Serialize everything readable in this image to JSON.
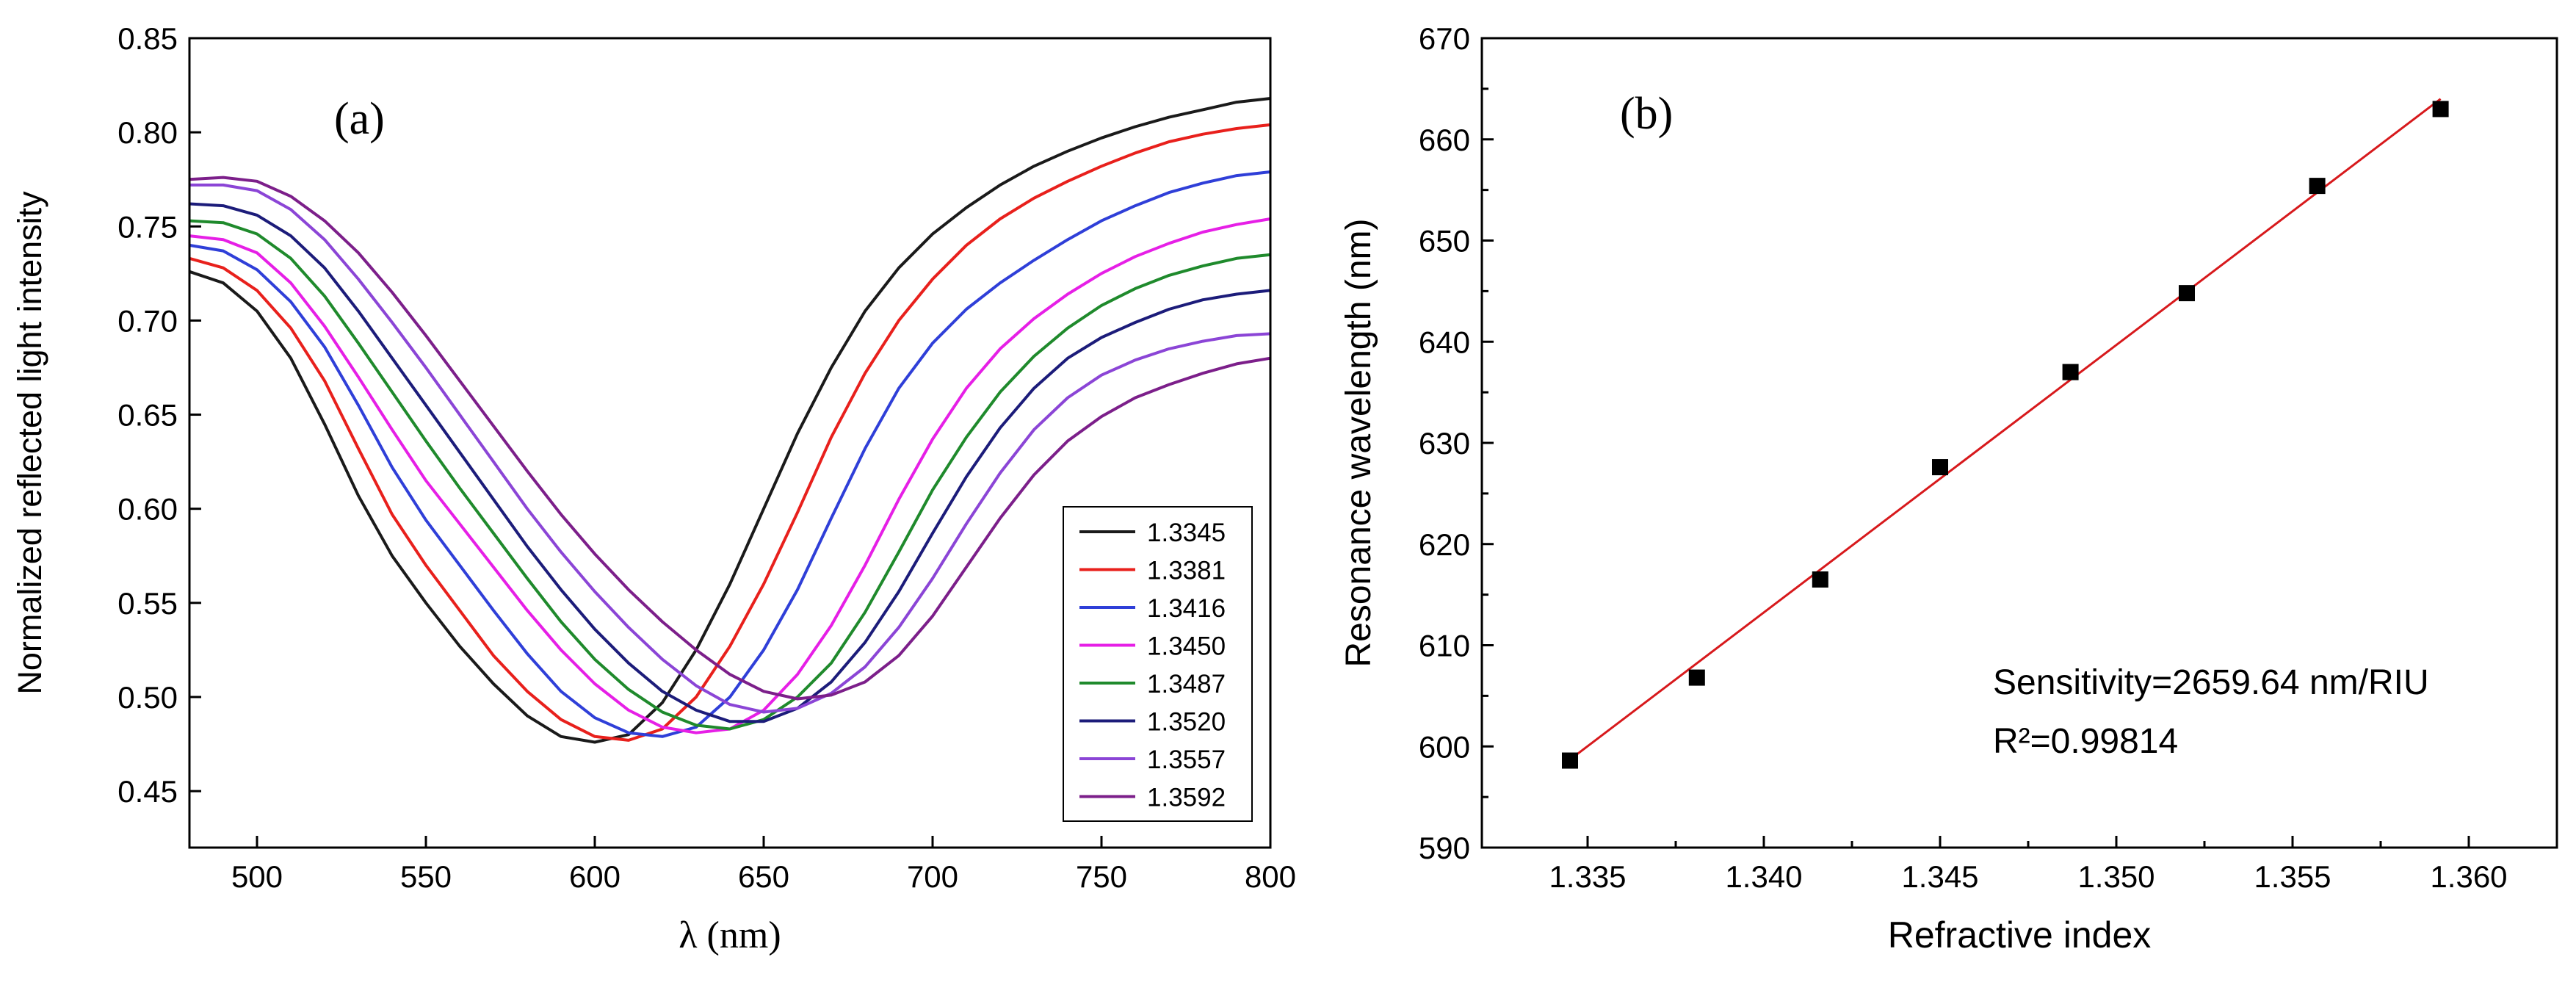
{
  "chart_data": [
    {
      "id": "a",
      "type": "line",
      "panel_label": "(a)",
      "title": "",
      "xlabel": "λ (nm)",
      "ylabel": "Normalized reflected light intensity",
      "xlim": [
        480,
        800
      ],
      "ylim": [
        0.42,
        0.85
      ],
      "xticks": [
        "500",
        "550",
        "600",
        "650",
        "700",
        "750",
        "800"
      ],
      "yticks": [
        "0.45",
        "0.50",
        "0.55",
        "0.60",
        "0.65",
        "0.70",
        "0.75",
        "0.80",
        "0.85"
      ],
      "legend_position": "right",
      "x": [
        480,
        490,
        500,
        510,
        520,
        530,
        540,
        550,
        560,
        570,
        580,
        590,
        600,
        610,
        620,
        630,
        640,
        650,
        660,
        670,
        680,
        690,
        700,
        710,
        720,
        730,
        740,
        750,
        760,
        770,
        780,
        790,
        800
      ],
      "series": [
        {
          "name": "1.3345",
          "color": "#1a1a1a",
          "values": [
            0.726,
            0.72,
            0.705,
            0.68,
            0.645,
            0.607,
            0.575,
            0.55,
            0.527,
            0.507,
            0.49,
            0.479,
            0.476,
            0.48,
            0.497,
            0.525,
            0.56,
            0.6,
            0.64,
            0.675,
            0.705,
            0.728,
            0.746,
            0.76,
            0.772,
            0.782,
            0.79,
            0.797,
            0.803,
            0.808,
            0.812,
            0.816,
            0.818
          ]
        },
        {
          "name": "1.3381",
          "color": "#e8201c",
          "values": [
            0.733,
            0.728,
            0.716,
            0.696,
            0.668,
            0.632,
            0.597,
            0.57,
            0.546,
            0.522,
            0.503,
            0.488,
            0.479,
            0.477,
            0.483,
            0.5,
            0.527,
            0.56,
            0.598,
            0.638,
            0.672,
            0.7,
            0.722,
            0.74,
            0.754,
            0.765,
            0.774,
            0.782,
            0.789,
            0.795,
            0.799,
            0.802,
            0.804
          ]
        },
        {
          "name": "1.3416",
          "color": "#2f3fd8",
          "values": [
            0.74,
            0.737,
            0.727,
            0.71,
            0.686,
            0.655,
            0.622,
            0.594,
            0.57,
            0.546,
            0.523,
            0.503,
            0.489,
            0.481,
            0.479,
            0.484,
            0.5,
            0.525,
            0.557,
            0.595,
            0.632,
            0.664,
            0.688,
            0.706,
            0.72,
            0.732,
            0.743,
            0.753,
            0.761,
            0.768,
            0.773,
            0.777,
            0.779
          ]
        },
        {
          "name": "1.3450",
          "color": "#e61fe6",
          "values": [
            0.745,
            0.743,
            0.736,
            0.72,
            0.697,
            0.67,
            0.642,
            0.615,
            0.592,
            0.569,
            0.546,
            0.525,
            0.507,
            0.493,
            0.484,
            0.481,
            0.483,
            0.493,
            0.512,
            0.538,
            0.57,
            0.605,
            0.637,
            0.664,
            0.685,
            0.701,
            0.714,
            0.725,
            0.734,
            0.741,
            0.747,
            0.751,
            0.754
          ]
        },
        {
          "name": "1.3487",
          "color": "#1f8a2c",
          "values": [
            0.753,
            0.752,
            0.746,
            0.733,
            0.713,
            0.688,
            0.662,
            0.636,
            0.611,
            0.587,
            0.563,
            0.54,
            0.52,
            0.504,
            0.492,
            0.485,
            0.483,
            0.488,
            0.5,
            0.518,
            0.545,
            0.577,
            0.61,
            0.638,
            0.662,
            0.681,
            0.696,
            0.708,
            0.717,
            0.724,
            0.729,
            0.733,
            0.735
          ]
        },
        {
          "name": "1.3520",
          "color": "#1c1c7a",
          "values": [
            0.762,
            0.761,
            0.756,
            0.745,
            0.728,
            0.705,
            0.68,
            0.655,
            0.63,
            0.605,
            0.58,
            0.557,
            0.536,
            0.518,
            0.503,
            0.493,
            0.487,
            0.487,
            0.494,
            0.508,
            0.529,
            0.556,
            0.587,
            0.617,
            0.643,
            0.664,
            0.68,
            0.691,
            0.699,
            0.706,
            0.711,
            0.714,
            0.716
          ]
        },
        {
          "name": "1.3557",
          "color": "#8b45d6",
          "values": [
            0.772,
            0.772,
            0.769,
            0.759,
            0.743,
            0.722,
            0.699,
            0.675,
            0.65,
            0.625,
            0.6,
            0.577,
            0.556,
            0.537,
            0.52,
            0.506,
            0.496,
            0.492,
            0.494,
            0.502,
            0.516,
            0.537,
            0.563,
            0.592,
            0.619,
            0.642,
            0.659,
            0.671,
            0.679,
            0.685,
            0.689,
            0.692,
            0.693
          ]
        },
        {
          "name": "1.3592",
          "color": "#7c1f8a",
          "values": [
            0.775,
            0.776,
            0.774,
            0.766,
            0.753,
            0.736,
            0.715,
            0.692,
            0.668,
            0.644,
            0.62,
            0.597,
            0.576,
            0.557,
            0.54,
            0.525,
            0.512,
            0.503,
            0.499,
            0.501,
            0.508,
            0.522,
            0.543,
            0.569,
            0.595,
            0.618,
            0.636,
            0.649,
            0.659,
            0.666,
            0.672,
            0.677,
            0.68
          ]
        }
      ]
    },
    {
      "id": "b",
      "type": "scatter",
      "panel_label": "(b)",
      "title": "",
      "xlabel": "Refractive index",
      "ylabel": "Resonance wavelength (nm)",
      "xlim": [
        1.332,
        1.3625
      ],
      "ylim": [
        590,
        670
      ],
      "xticks": [
        "1.335",
        "1.340",
        "1.345",
        "1.350",
        "1.355",
        "1.360"
      ],
      "yticks": [
        "590",
        "600",
        "610",
        "620",
        "630",
        "640",
        "650",
        "660",
        "670"
      ],
      "points": {
        "x": [
          1.3345,
          1.3381,
          1.3416,
          1.345,
          1.3487,
          1.352,
          1.3557,
          1.3592
        ],
        "y": [
          598.6,
          606.8,
          616.5,
          627.6,
          637.0,
          644.8,
          655.4,
          663.0
        ]
      },
      "marker_color": "#000000",
      "fit": {
        "color": "#d7191c",
        "slope": 2659.64,
        "x": [
          1.3345,
          1.3592
        ],
        "y": [
          598.7,
          664.0
        ]
      },
      "annotations": [
        "Sensitivity=2659.64 nm/RIU",
        "R²=0.99814"
      ]
    }
  ]
}
